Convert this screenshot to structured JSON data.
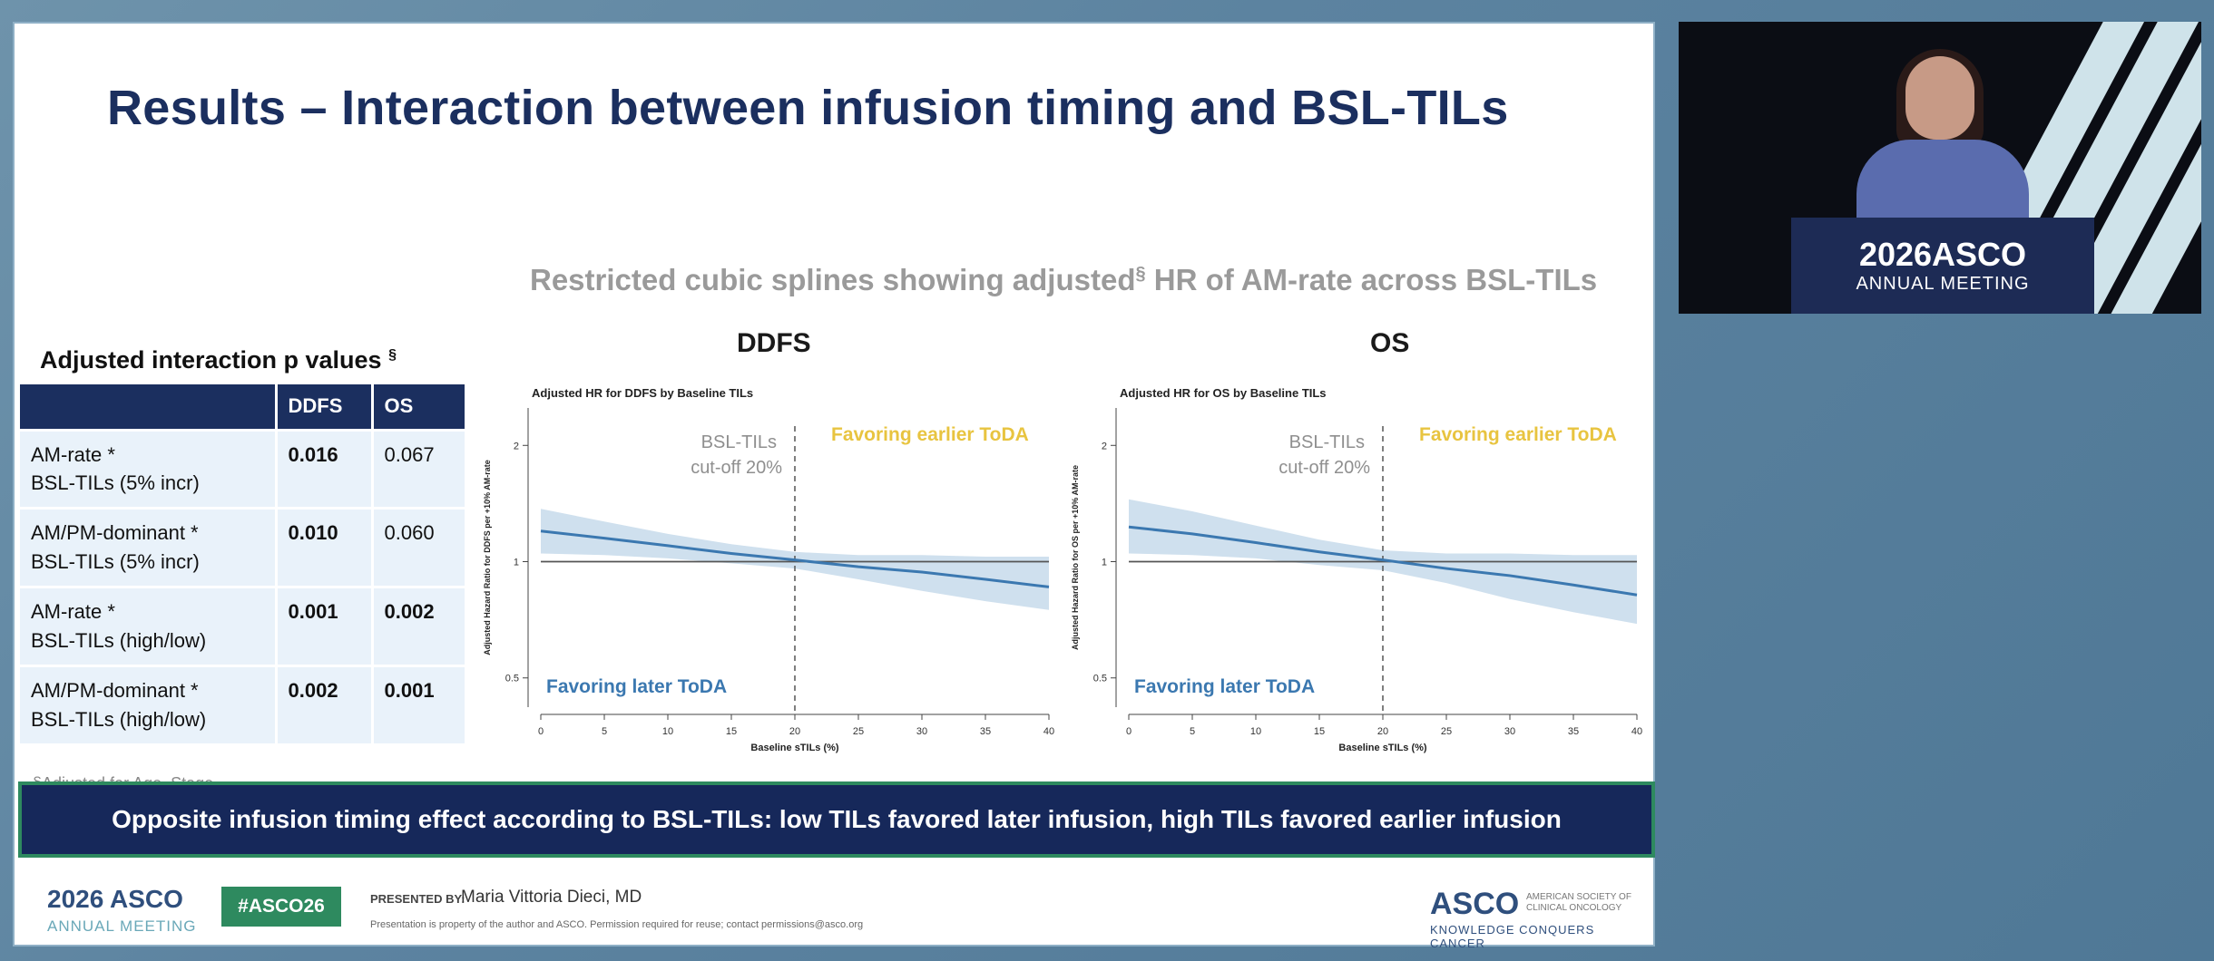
{
  "slide": {
    "title": "Results – Interaction between infusion timing and BSL-TILs",
    "subtitle": "Restricted cubic splines showing adjusted",
    "subtitle_mark": "§",
    "subtitle_tail": " HR of AM-rate across BSL-TILs",
    "footnote": "§Adjusted for Age, Stage",
    "banner": "Opposite infusion timing effect according to BSL-TILs: low TILs favored later infusion, high TILs favored earlier infusion"
  },
  "table": {
    "title": "Adjusted interaction p values",
    "title_mark": "§",
    "headers": [
      "",
      "DDFS",
      "OS"
    ],
    "rows": [
      {
        "label": [
          "AM-rate *",
          "BSL-TILs (5% incr)"
        ],
        "ddfs": "0.016",
        "os": "0.067",
        "ddfs_bold": true,
        "os_bold": false
      },
      {
        "label": [
          "AM/PM-dominant *",
          "BSL-TILs (5% incr)"
        ],
        "ddfs": "0.010",
        "os": "0.060",
        "ddfs_bold": true,
        "os_bold": false
      },
      {
        "label": [
          "AM-rate *",
          "BSL-TILs (high/low)"
        ],
        "ddfs": "0.001",
        "os": "0.002",
        "ddfs_bold": true,
        "os_bold": true
      },
      {
        "label": [
          "AM/PM-dominant *",
          "BSL-TILs (high/low)"
        ],
        "ddfs": "0.002",
        "os": "0.001",
        "ddfs_bold": true,
        "os_bold": true
      }
    ]
  },
  "chart_data": [
    {
      "type": "line",
      "heading": "DDFS",
      "title": "Adjusted HR for DDFS by Baseline TILs",
      "xlabel": "Baseline sTILs (%)",
      "ylabel": "Adjusted Hazard Ratio for DDFS per +10% AM-rate",
      "x_ticks": [
        0,
        5,
        10,
        15,
        20,
        25,
        30,
        35,
        40
      ],
      "y_ticks": [
        0.5,
        1,
        2
      ],
      "y_scale": "log",
      "xlim": [
        0,
        40
      ],
      "ylim": [
        0.42,
        2.5
      ],
      "reference_line": 1,
      "cutoff_x": 20,
      "cutoff_label": [
        "BSL-TILs",
        "cut-off 20%"
      ],
      "label_upper": "Favoring earlier ToDA",
      "label_lower": "Favoring later ToDA",
      "series": [
        {
          "x": [
            0,
            5,
            10,
            15,
            20,
            25,
            30,
            35,
            40
          ],
          "values": [
            1.2,
            1.15,
            1.1,
            1.05,
            1.01,
            0.97,
            0.94,
            0.9,
            0.86
          ],
          "lower": [
            1.05,
            1.04,
            1.02,
            0.99,
            0.96,
            0.9,
            0.84,
            0.79,
            0.75
          ],
          "upper": [
            1.37,
            1.27,
            1.18,
            1.11,
            1.06,
            1.04,
            1.04,
            1.03,
            1.03
          ]
        }
      ],
      "colors": {
        "line": "#3b78b0",
        "band": "#cfe0ee",
        "upper_label": "#e8c440",
        "lower_label": "#3b78b0"
      }
    },
    {
      "type": "line",
      "heading": "OS",
      "title": "Adjusted HR for OS by Baseline TILs",
      "xlabel": "Baseline sTILs (%)",
      "ylabel": "Adjusted Hazard Ratio for OS per +10% AM-rate",
      "x_ticks": [
        0,
        5,
        10,
        15,
        20,
        25,
        30,
        35,
        40
      ],
      "y_ticks": [
        0.5,
        1,
        2
      ],
      "y_scale": "log",
      "xlim": [
        0,
        40
      ],
      "ylim": [
        0.42,
        2.5
      ],
      "reference_line": 1,
      "cutoff_x": 20,
      "cutoff_label": [
        "BSL-TILs",
        "cut-off 20%"
      ],
      "label_upper": "Favoring earlier ToDA",
      "label_lower": "Favoring later ToDA",
      "series": [
        {
          "x": [
            0,
            5,
            10,
            15,
            20,
            25,
            30,
            35,
            40
          ],
          "values": [
            1.23,
            1.18,
            1.12,
            1.06,
            1.01,
            0.96,
            0.92,
            0.87,
            0.82
          ],
          "lower": [
            1.05,
            1.04,
            1.02,
            0.98,
            0.95,
            0.88,
            0.8,
            0.74,
            0.69
          ],
          "upper": [
            1.45,
            1.35,
            1.24,
            1.14,
            1.07,
            1.05,
            1.05,
            1.04,
            1.04
          ]
        }
      ],
      "colors": {
        "line": "#3b78b0",
        "band": "#cfe0ee",
        "upper_label": "#e8c440",
        "lower_label": "#3b78b0"
      }
    }
  ],
  "footer": {
    "asco_year": "2026 ASCO",
    "asco_sub": "ANNUAL MEETING",
    "hashtag": "#ASCO26",
    "presented_by": "PRESENTED BY:",
    "presenter": "Maria Vittoria Dieci, MD",
    "notice": "Presentation is property of the author and ASCO. Permission required for reuse; contact permissions@asco.org",
    "logo": "ASCO",
    "logo_side": "AMERICAN SOCIETY OF CLINICAL ONCOLOGY",
    "tagline": "KNOWLEDGE CONQUERS CANCER"
  },
  "video": {
    "podium_year": "2026ASCO",
    "podium_sub": "ANNUAL MEETING"
  }
}
